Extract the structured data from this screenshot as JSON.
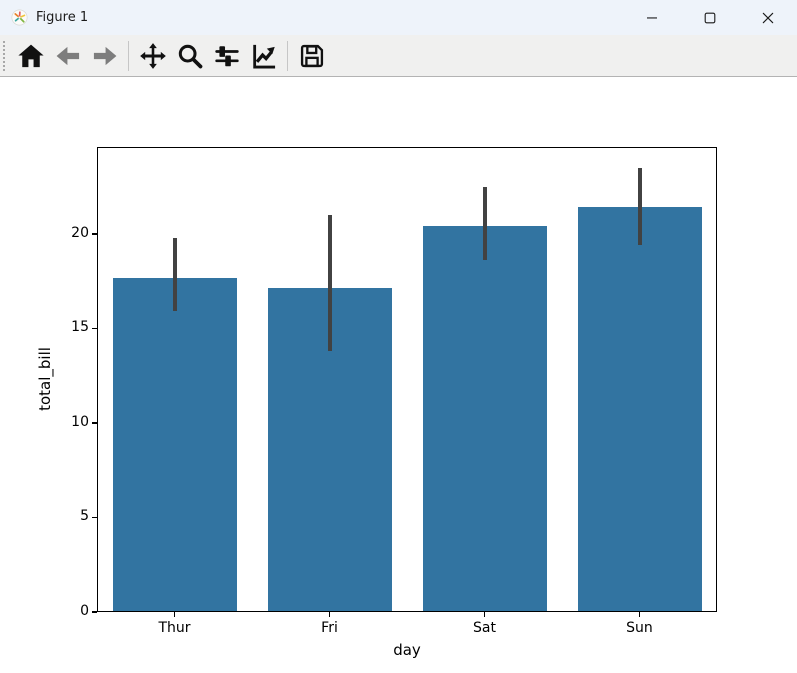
{
  "titlebar": {
    "icon": "matplotlib-logo-icon",
    "title": "Figure 1",
    "controls": [
      "minimize-icon",
      "maximize-icon",
      "close-icon"
    ]
  },
  "toolbar": {
    "items": [
      {
        "type": "button",
        "name": "home",
        "icon": "home-icon",
        "enabled": true
      },
      {
        "type": "button",
        "name": "back",
        "icon": "back-arrow-icon",
        "enabled": false
      },
      {
        "type": "button",
        "name": "forward",
        "icon": "forward-arrow-icon",
        "enabled": false
      },
      {
        "type": "separator"
      },
      {
        "type": "button",
        "name": "pan",
        "icon": "pan-move-icon",
        "enabled": true
      },
      {
        "type": "button",
        "name": "zoom",
        "icon": "zoom-magnifier-icon",
        "enabled": true
      },
      {
        "type": "button",
        "name": "configure-subplots",
        "icon": "sliders-icon",
        "enabled": true
      },
      {
        "type": "button",
        "name": "edit-axes",
        "icon": "line-chart-icon",
        "enabled": true
      },
      {
        "type": "separator"
      },
      {
        "type": "button",
        "name": "save",
        "icon": "save-floppy-icon",
        "enabled": true
      }
    ]
  },
  "chart_data": {
    "type": "bar",
    "title": "",
    "xlabel": "day",
    "ylabel": "total_bill",
    "categories": [
      "Thur",
      "Fri",
      "Sat",
      "Sun"
    ],
    "values": [
      17.68,
      17.15,
      20.44,
      21.41
    ],
    "error_low": [
      15.9,
      13.8,
      18.6,
      19.4
    ],
    "error_high": [
      19.8,
      21.0,
      22.5,
      23.5
    ],
    "ylim": [
      0,
      24.6
    ],
    "yticks": [
      0,
      5,
      10,
      15,
      20
    ],
    "grid": false,
    "legend_position": "none",
    "bar_color": "#3274a1",
    "error_color": "#424242"
  }
}
